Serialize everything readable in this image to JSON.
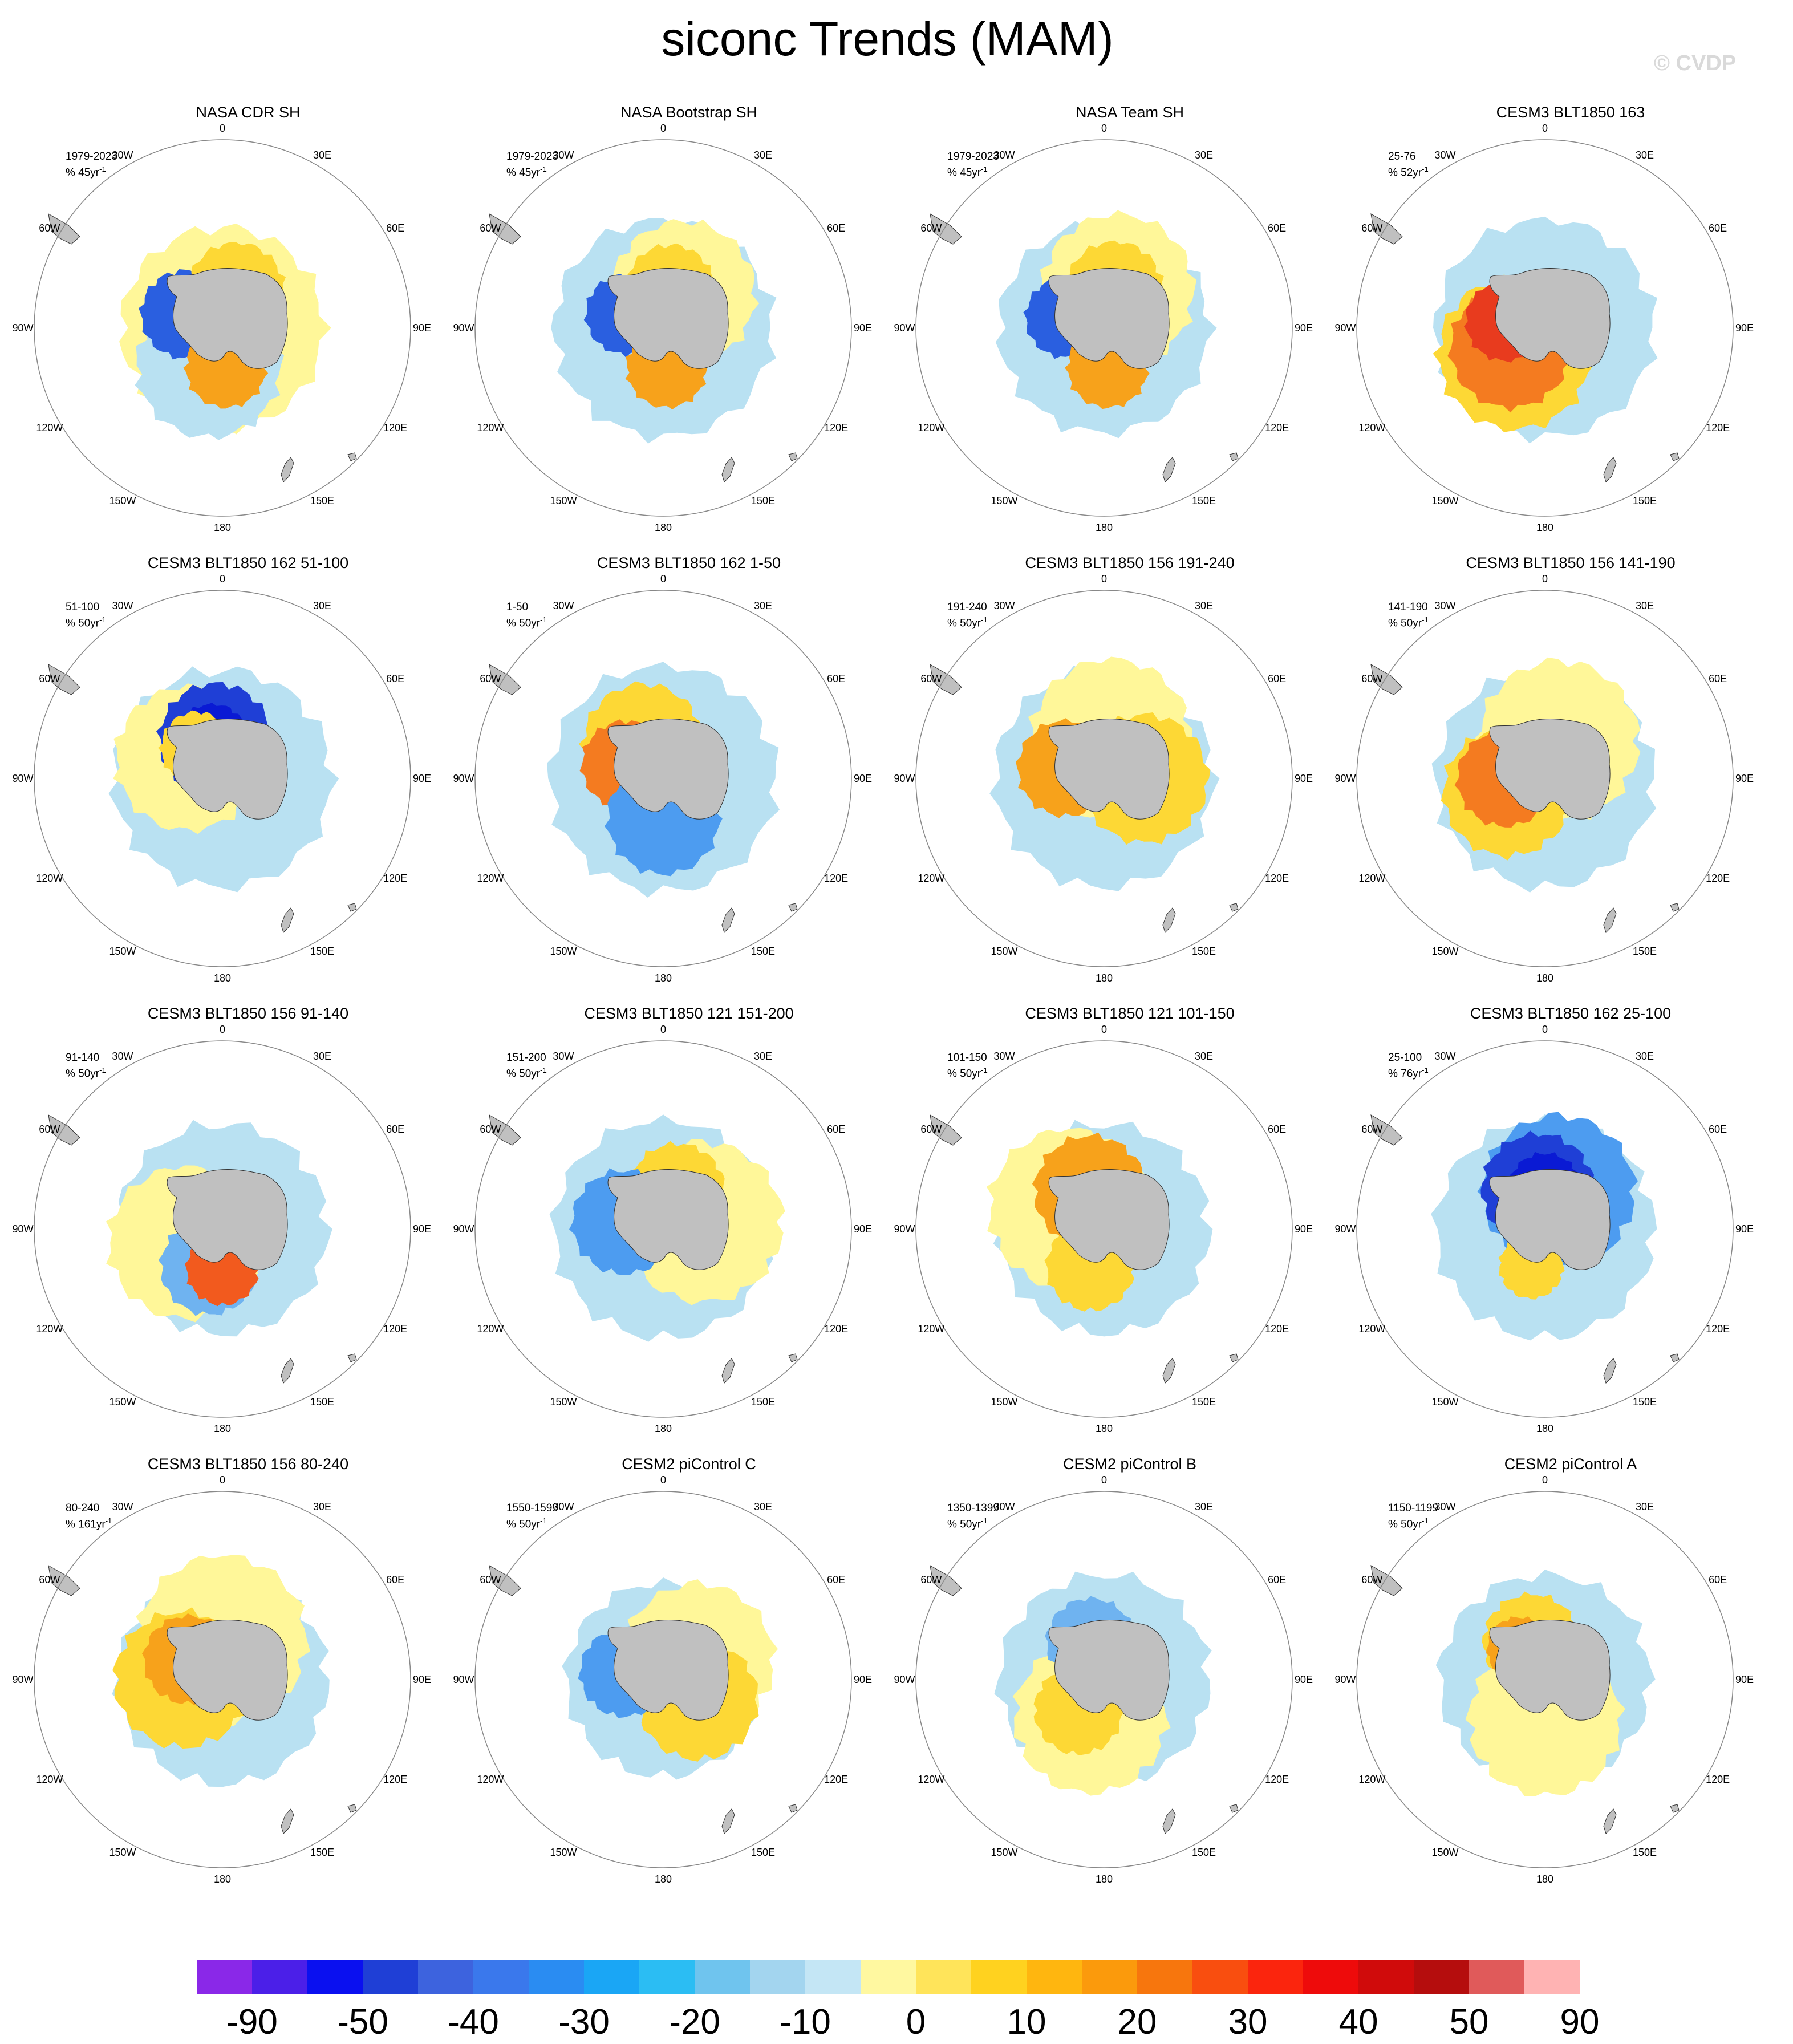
{
  "title": "siconc Trends (MAM)",
  "watermark": "© CVDP",
  "land_color": "#c0c0c0",
  "longitude_labels": [
    "0",
    "30E",
    "60E",
    "90E",
    "120E",
    "150E",
    "180",
    "150W",
    "120W",
    "90W",
    "60W",
    "30W"
  ],
  "panels": [
    {
      "title": "NASA CDR SH",
      "period": "1979-2023",
      "units": "% 45yr",
      "units_exp": "-1",
      "blobs": [
        [
          "#fff799",
          0,
          1.05
        ],
        [
          "#b9e1f2",
          200,
          0.9
        ],
        [
          "#2a5fe0",
          290,
          0.55
        ],
        [
          "#fdd835",
          20,
          0.6
        ],
        [
          "#f7a21b",
          175,
          0.5
        ]
      ]
    },
    {
      "title": "NASA Bootstrap SH",
      "period": "1979-2023",
      "units": "% 45yr",
      "units_exp": "-1",
      "blobs": [
        [
          "#b9e1f2",
          0,
          1.15
        ],
        [
          "#fff799",
          30,
          0.9
        ],
        [
          "#2a5fe0",
          290,
          0.5
        ],
        [
          "#fdd835",
          10,
          0.55
        ],
        [
          "#f7a21b",
          175,
          0.5
        ]
      ]
    },
    {
      "title": "NASA Team SH",
      "period": "1979-2023",
      "units": "% 45yr",
      "units_exp": "-1",
      "blobs": [
        [
          "#b9e1f2",
          0,
          1.1
        ],
        [
          "#fff799",
          20,
          0.95
        ],
        [
          "#2a5fe0",
          285,
          0.5
        ],
        [
          "#fdd835",
          15,
          0.6
        ],
        [
          "#f7a21b",
          175,
          0.5
        ]
      ]
    },
    {
      "title": "CESM3 BLT1850 163",
      "period": "25-76",
      "units": "% 52yr",
      "units_exp": "-1",
      "blobs": [
        [
          "#b9e1f2",
          0,
          1.15
        ],
        [
          "#fdd835",
          230,
          0.95
        ],
        [
          "#f47b20",
          240,
          0.75
        ],
        [
          "#e83b1e",
          280,
          0.5
        ]
      ]
    },
    {
      "title": "CESM3 BLT1850 162 51-100",
      "period": "51-100",
      "units": "% 50yr",
      "units_exp": "-1",
      "blobs": [
        [
          "#b9e1f2",
          0,
          1.15
        ],
        [
          "#fff799",
          300,
          0.9
        ],
        [
          "#1f3fd6",
          350,
          0.7
        ],
        [
          "#0a1ad4",
          345,
          0.45
        ],
        [
          "#fdd835",
          320,
          0.45
        ]
      ]
    },
    {
      "title": "CESM3 BLT1850 162 1-50",
      "period": "1-50",
      "units": "% 50yr",
      "units_exp": "-1",
      "blobs": [
        [
          "#b9e1f2",
          0,
          1.2
        ],
        [
          "#fdd835",
          330,
          0.75
        ],
        [
          "#f47b20",
          290,
          0.55
        ],
        [
          "#4d9cf0",
          180,
          0.7
        ]
      ]
    },
    {
      "title": "CESM3 BLT1850 156 191-240",
      "period": "191-240",
      "units": "% 50yr",
      "units_exp": "-1",
      "blobs": [
        [
          "#b9e1f2",
          0,
          1.15
        ],
        [
          "#fff799",
          10,
          1.0
        ],
        [
          "#fdd835",
          90,
          0.8
        ],
        [
          "#f7a21b",
          285,
          0.6
        ]
      ]
    },
    {
      "title": "CESM3 BLT1850 156 141-190",
      "period": "141-190",
      "units": "% 50yr",
      "units_exp": "-1",
      "blobs": [
        [
          "#b9e1f2",
          0,
          1.15
        ],
        [
          "#fff799",
          20,
          1.0
        ],
        [
          "#fdd835",
          250,
          0.8
        ],
        [
          "#f47b20",
          270,
          0.6
        ]
      ]
    },
    {
      "title": "CESM3 BLT1850 156 91-140",
      "period": "91-140",
      "units": "% 50yr",
      "units_exp": "-1",
      "blobs": [
        [
          "#b9e1f2",
          0,
          1.1
        ],
        [
          "#fff799",
          250,
          0.95
        ],
        [
          "#6fb3f0",
          200,
          0.6
        ],
        [
          "#f25a1e",
          180,
          0.45
        ]
      ]
    },
    {
      "title": "CESM3 BLT1850 121 151-200",
      "period": "151-200",
      "units": "% 50yr",
      "units_exp": "-1",
      "blobs": [
        [
          "#b9e1f2",
          0,
          1.15
        ],
        [
          "#fff799",
          80,
          1.0
        ],
        [
          "#fdd835",
          20,
          0.6
        ],
        [
          "#4d9cf0",
          280,
          0.65
        ]
      ]
    },
    {
      "title": "CESM3 BLT1850 121 101-150",
      "period": "101-150",
      "units": "% 50yr",
      "units_exp": "-1",
      "blobs": [
        [
          "#b9e1f2",
          0,
          1.1
        ],
        [
          "#fff799",
          300,
          1.0
        ],
        [
          "#f7a21b",
          340,
          0.7
        ],
        [
          "#fdd835",
          200,
          0.55
        ]
      ]
    },
    {
      "title": "CESM3 BLT1850 162 25-100",
      "period": "25-100",
      "units": "% 76yr",
      "units_exp": "-1",
      "blobs": [
        [
          "#b9e1f2",
          0,
          1.15
        ],
        [
          "#4d9cf0",
          20,
          0.95
        ],
        [
          "#1f3fd6",
          350,
          0.7
        ],
        [
          "#0a1ad4",
          0,
          0.45
        ],
        [
          "#fdd835",
          200,
          0.4
        ]
      ]
    },
    {
      "title": "CESM3 BLT1850 156 80-240",
      "period": "80-240",
      "units": "% 161yr",
      "units_exp": "-1",
      "blobs": [
        [
          "#b9e1f2",
          90,
          1.1
        ],
        [
          "#fff799",
          0,
          1.05
        ],
        [
          "#fdd835",
          270,
          0.85
        ],
        [
          "#f7a21b",
          300,
          0.55
        ]
      ]
    },
    {
      "title": "CESM2 piControl C",
      "period": "1550-1599",
      "units": "% 50yr",
      "units_exp": "-1",
      "blobs": [
        [
          "#b9e1f2",
          300,
          1.0
        ],
        [
          "#fff799",
          60,
          0.95
        ],
        [
          "#fdd835",
          120,
          0.75
        ],
        [
          "#4d9cf0",
          280,
          0.55
        ]
      ]
    },
    {
      "title": "CESM2 piControl B",
      "period": "1350-1399",
      "units": "% 50yr",
      "units_exp": "-1",
      "blobs": [
        [
          "#b9e1f2",
          0,
          1.1
        ],
        [
          "#fff799",
          200,
          0.95
        ],
        [
          "#fdd835",
          220,
          0.55
        ],
        [
          "#6fb3f0",
          340,
          0.55
        ]
      ]
    },
    {
      "title": "CESM2 piControl A",
      "period": "1150-1199",
      "units": "% 50yr",
      "units_exp": "-1",
      "blobs": [
        [
          "#b9e1f2",
          0,
          1.1
        ],
        [
          "#fff799",
          180,
          0.95
        ],
        [
          "#fdd835",
          340,
          0.6
        ],
        [
          "#f7a21b",
          320,
          0.4
        ]
      ]
    }
  ],
  "colorbar": {
    "colors": [
      "#8a28e8",
      "#4b1fe8",
      "#0a10f0",
      "#1f3fd6",
      "#3d63de",
      "#3a78ec",
      "#2a8cf2",
      "#1aa6f5",
      "#2bbdf3",
      "#6fc4ee",
      "#a3d5ef",
      "#c4e6f5",
      "#fff8a0",
      "#ffe45a",
      "#ffd21f",
      "#ffb60f",
      "#fb9a0c",
      "#f7760d",
      "#f94e0f",
      "#fb250d",
      "#ee0b0b",
      "#d00b0b",
      "#b50d0d",
      "#e05a5a",
      "#ffb3b3"
    ],
    "labels": [
      "-90",
      "-50",
      "-40",
      "-30",
      "-20",
      "-10",
      "0",
      "10",
      "20",
      "30",
      "40",
      "50",
      "90"
    ]
  }
}
